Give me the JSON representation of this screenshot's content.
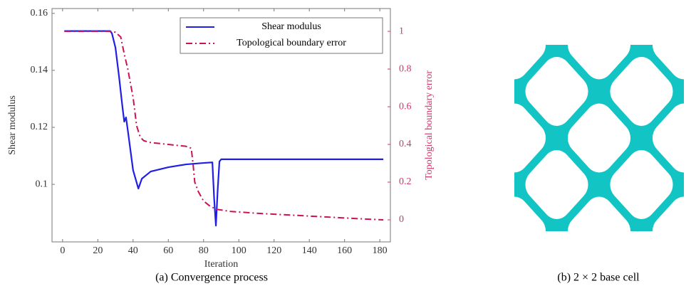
{
  "chart_data": {
    "type": "line",
    "xlabel": "Iteration",
    "ylabel": "Shear modulus",
    "y2label": "Topological boundary error",
    "xlim": [
      -6,
      186
    ],
    "xticks": [
      0,
      20,
      40,
      60,
      80,
      100,
      120,
      140,
      160,
      180
    ],
    "ylim": [
      0.0798,
      0.1617
    ],
    "yticks": [
      0.1,
      0.12,
      0.14,
      0.16
    ],
    "y2lim": [
      -0.117,
      1.121
    ],
    "y2ticks": [
      0,
      0.2,
      0.4,
      0.6,
      0.8,
      1
    ],
    "y2color": "#d6336c",
    "legend": "top-right",
    "series": [
      {
        "name": "Shear modulus",
        "color": "#1f1fe6",
        "linestyle": "solid",
        "x": [
          1,
          27,
          28,
          30,
          32,
          34,
          35,
          36,
          37,
          40,
          43,
          45,
          50,
          60,
          70,
          80,
          85,
          86,
          87,
          88,
          89,
          90,
          100,
          182
        ],
        "values": [
          0.1538,
          0.1538,
          0.153,
          0.148,
          0.138,
          0.127,
          0.122,
          0.1235,
          0.119,
          0.105,
          0.0985,
          0.102,
          0.1045,
          0.106,
          0.107,
          0.1075,
          0.1077,
          0.095,
          0.0855,
          0.098,
          0.108,
          0.1088,
          0.1088,
          0.1088
        ]
      },
      {
        "name": "Topological boundary error",
        "color": "#cc1155",
        "linestyle": "dashdot",
        "axis": "y2",
        "x": [
          1,
          28,
          30,
          33,
          35,
          37,
          40,
          42,
          44,
          46,
          50,
          60,
          70,
          73,
          74,
          75,
          77,
          80,
          84,
          88,
          95,
          110,
          130,
          150,
          170,
          182
        ],
        "values": [
          1.0,
          1.0,
          0.995,
          0.97,
          0.88,
          0.8,
          0.65,
          0.5,
          0.44,
          0.42,
          0.41,
          0.4,
          0.39,
          0.38,
          0.3,
          0.2,
          0.15,
          0.1,
          0.07,
          0.055,
          0.045,
          0.035,
          0.025,
          0.015,
          0.005,
          0.0
        ]
      }
    ]
  },
  "captions": [
    "(a) Convergence process",
    "(b) 2 × 2 base cell"
  ]
}
